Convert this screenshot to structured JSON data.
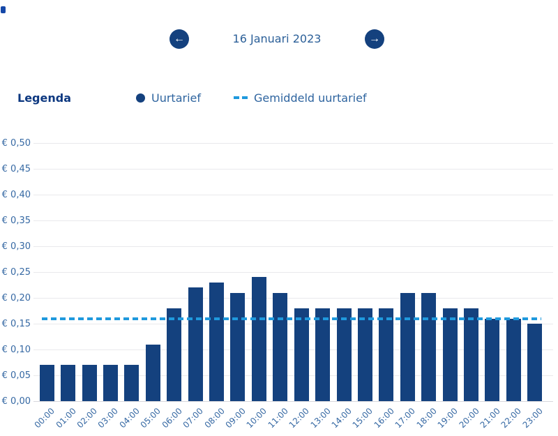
{
  "header": {
    "date_label": "16 Januari 2023",
    "prev_icon": "←",
    "next_icon": "→"
  },
  "legend": {
    "title": "Legenda",
    "items": [
      {
        "label": "Uurtarief",
        "marker": "dot-marker",
        "color": "#14417e"
      },
      {
        "label": "Gemiddeld uurtarief",
        "marker": "dashed-line-marker",
        "color": "#1f99dd"
      }
    ]
  },
  "chart_data": {
    "type": "bar",
    "title": "",
    "xlabel": "",
    "ylabel": "",
    "categories": [
      "00:00",
      "01:00",
      "02:00",
      "03:00",
      "04:00",
      "05:00",
      "06:00",
      "07:00",
      "08:00",
      "09:00",
      "10:00",
      "11:00",
      "12:00",
      "13:00",
      "14:00",
      "15:00",
      "16:00",
      "17:00",
      "18:00",
      "19:00",
      "20:00",
      "21:00",
      "22:00",
      "23:00"
    ],
    "series": [
      {
        "name": "Uurtarief",
        "type": "bar",
        "color": "#14417e",
        "values": [
          0.07,
          0.07,
          0.07,
          0.07,
          0.07,
          0.11,
          0.18,
          0.22,
          0.23,
          0.21,
          0.24,
          0.21,
          0.18,
          0.18,
          0.18,
          0.18,
          0.18,
          0.21,
          0.21,
          0.18,
          0.18,
          0.16,
          0.16,
          0.15
        ]
      },
      {
        "name": "Gemiddeld uurtarief",
        "type": "dashed-horizontal-line",
        "color": "#1f99dd",
        "value": 0.16
      }
    ],
    "ylim": [
      0,
      0.5
    ],
    "y_tick_step": 0.05,
    "y_tick_prefix": "€ ",
    "decimal_separator": ",",
    "grid": true,
    "legend_position": "top-left"
  },
  "colors": {
    "bar": "#14417e",
    "average_line": "#1f99dd",
    "axis_text": "#3568a3",
    "date_text": "#2b5f98",
    "legend_title": "#0d3880",
    "gridline": "#e9e9ec",
    "nav_button_bg": "#14417e",
    "nav_button_arrow": "#ffffff"
  }
}
